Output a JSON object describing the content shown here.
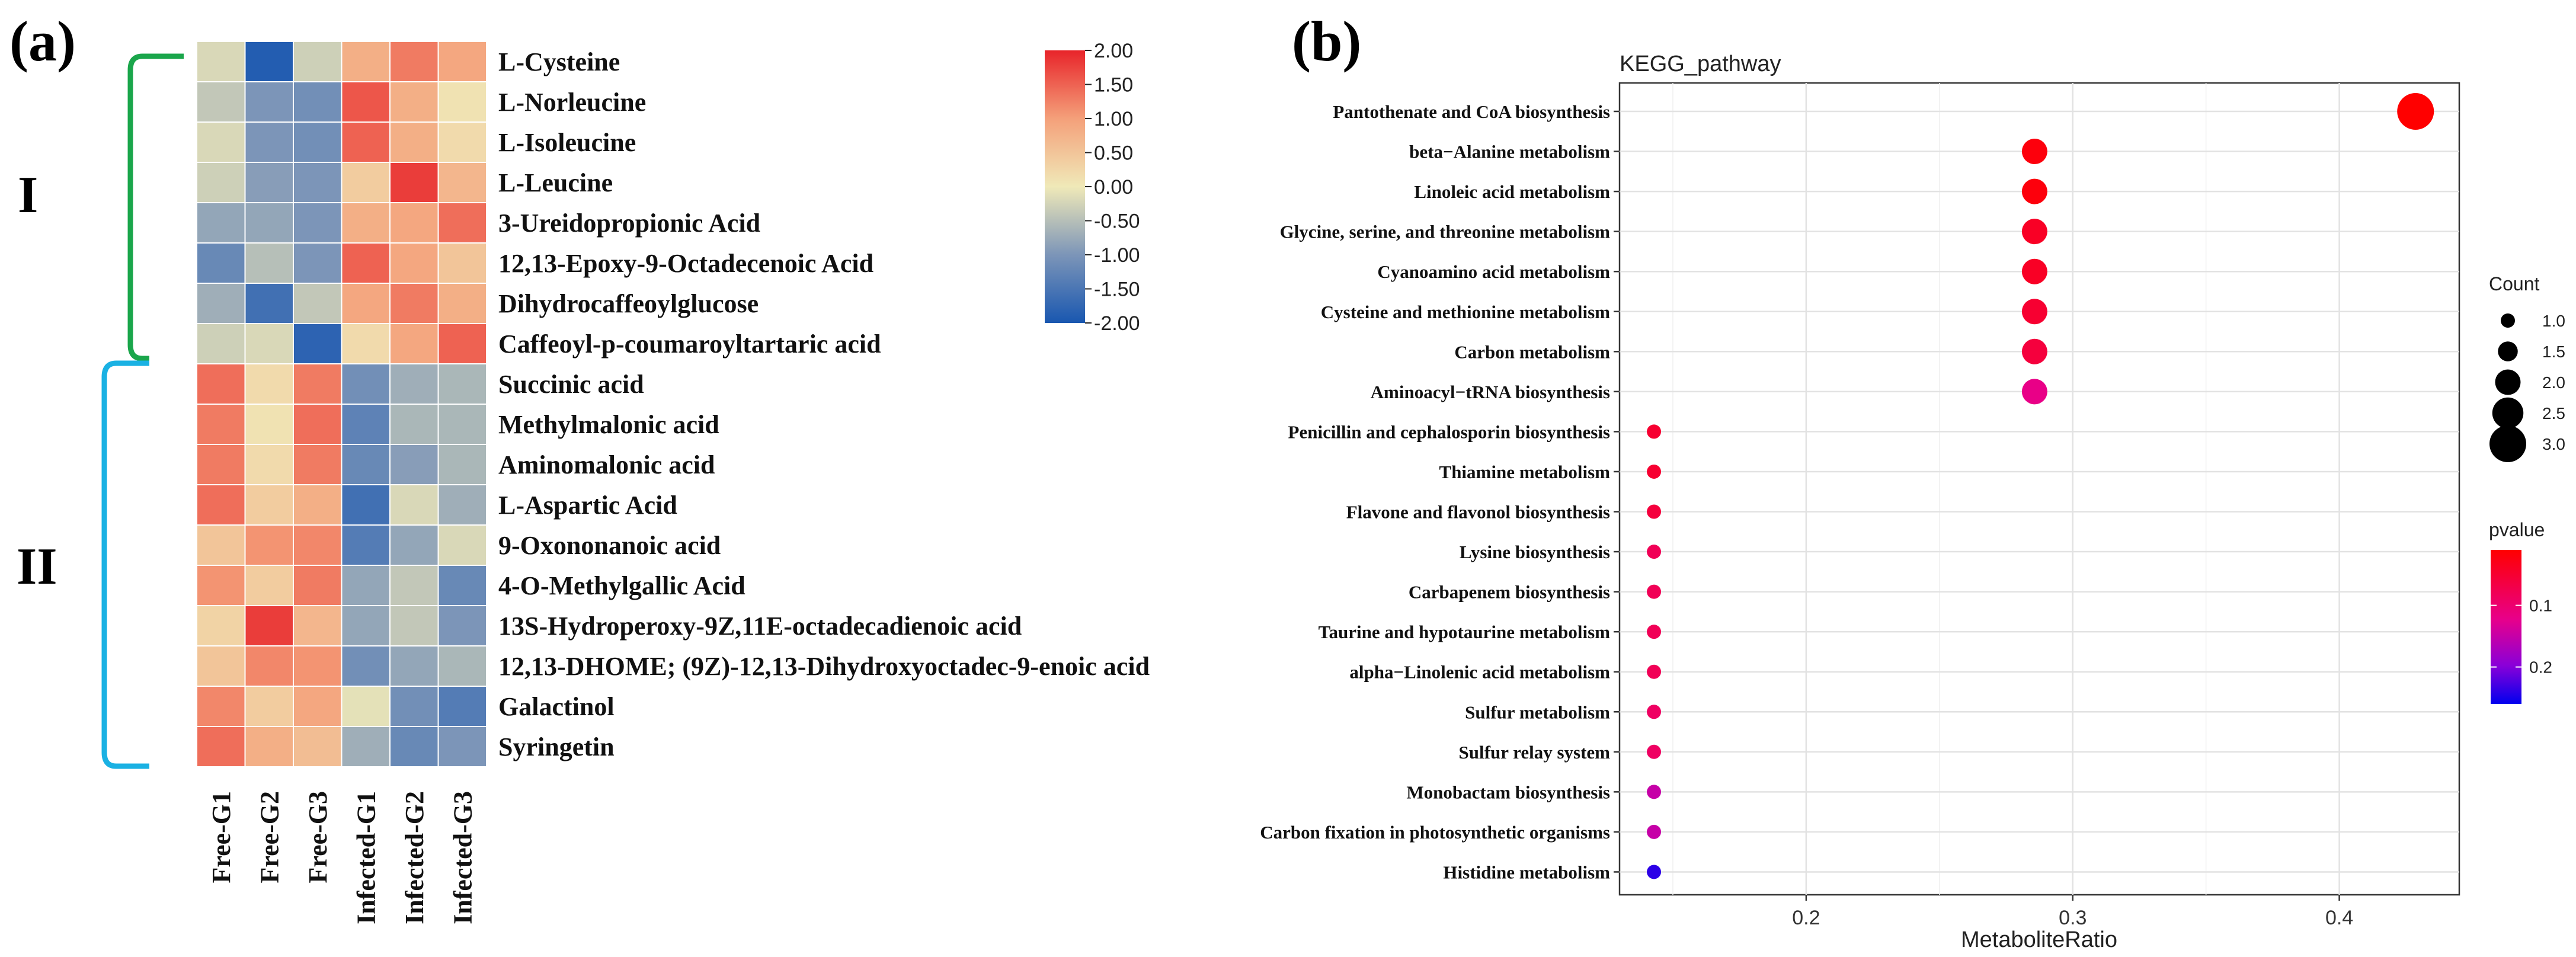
{
  "panel_a": {
    "panel_label": "(a)",
    "cluster_labels": [
      "I",
      "II"
    ],
    "colorbar": {
      "ticks": [
        "2.00",
        "1.50",
        "1.00",
        "0.50",
        "0.00",
        "-0.50",
        "-1.00",
        "-1.50",
        "-2.00"
      ]
    }
  },
  "panel_b": {
    "panel_label": "(b)",
    "title": "KEGG_pathway",
    "xlabel": "MetaboliteRatio",
    "xticks": [
      "0.2",
      "0.3",
      "0.4"
    ],
    "count_legend": {
      "title": "Count",
      "labels": [
        "1.0",
        "1.5",
        "2.0",
        "2.5",
        "3.0"
      ]
    },
    "pvalue_legend": {
      "title": "pvalue",
      "labels": [
        "0.1",
        "0.2"
      ]
    }
  },
  "colors": {
    "heat_low": "#1957b0",
    "heat_mid": "#f0e9b8",
    "heat_high": "#e8242a",
    "cluster_I": "#1aa64b",
    "cluster_II": "#1ab1e3",
    "p_low": "#ff0000",
    "p_mid": "#e8008a",
    "p_high": "#0000ee"
  },
  "chart_data": [
    {
      "type": "heatmap",
      "columns": [
        "Free-G1",
        "Free-G2",
        "Free-G3",
        "Infected-G1",
        "Infected-G2",
        "Infected-G3"
      ],
      "rows": [
        "L-Cysteine",
        "L-Norleucine",
        "L-Isoleucine",
        "L-Leucine",
        "3-Ureidopropionic Acid",
        "12,13-Epoxy-9-Octadecenoic Acid",
        "Dihydrocaffeoylglucose",
        "Caffeoyl-p-coumaroyltartaric acid",
        "Succinic acid",
        "Methylmalonic acid",
        "Aminomalonic acid",
        "L-Aspartic Acid",
        "9-Oxononanoic acid",
        "4-O-Methylgallic Acid",
        "13S-Hydroperoxy-9Z,11E-octadecadienoic acid",
        "12,13-DHOME; (9Z)-12,13-Dihydroxyoctadec-9-enoic acid",
        "Galactinol",
        "Syringetin"
      ],
      "clusters": [
        {
          "label": "I",
          "rows": [
            0,
            7
          ]
        },
        {
          "label": "II",
          "rows": [
            8,
            17
          ]
        }
      ],
      "values": [
        [
          -0.2,
          -1.9,
          -0.3,
          0.8,
          1.3,
          0.9
        ],
        [
          -0.4,
          -1.0,
          -1.1,
          1.6,
          0.8,
          0.1
        ],
        [
          -0.2,
          -1.0,
          -1.1,
          1.5,
          0.8,
          0.2
        ],
        [
          -0.3,
          -0.9,
          -1.0,
          0.4,
          1.8,
          0.7
        ],
        [
          -0.8,
          -0.8,
          -1.0,
          0.8,
          0.9,
          1.4
        ],
        [
          -1.2,
          -0.5,
          -1.0,
          1.5,
          0.9,
          0.5
        ],
        [
          -0.7,
          -1.6,
          -0.4,
          0.9,
          1.3,
          0.8
        ],
        [
          -0.3,
          -0.2,
          -1.8,
          0.2,
          0.9,
          1.5
        ],
        [
          1.4,
          0.2,
          1.3,
          -1.1,
          -0.7,
          -0.6
        ],
        [
          1.3,
          0.1,
          1.4,
          -1.3,
          -0.6,
          -0.6
        ],
        [
          1.3,
          0.2,
          1.3,
          -1.2,
          -0.9,
          -0.6
        ],
        [
          1.4,
          0.4,
          0.8,
          -1.6,
          -0.2,
          -0.7
        ],
        [
          0.5,
          1.1,
          1.2,
          -1.4,
          -0.8,
          -0.2
        ],
        [
          1.1,
          0.4,
          1.3,
          -0.8,
          -0.4,
          -1.2
        ],
        [
          0.3,
          1.8,
          0.7,
          -0.8,
          -0.4,
          -1.0
        ],
        [
          0.5,
          1.2,
          1.1,
          -1.1,
          -0.8,
          -0.6
        ],
        [
          1.2,
          0.4,
          0.9,
          -0.1,
          -1.1,
          -1.4
        ],
        [
          1.4,
          0.8,
          0.6,
          -0.7,
          -1.2,
          -1.0
        ]
      ],
      "color_range": [
        -2.0,
        2.0
      ]
    },
    {
      "type": "scatter",
      "title": "KEGG_pathway",
      "xlabel": "MetaboliteRatio",
      "xlim": [
        0.13,
        0.445
      ],
      "pathways": [
        "Pantothenate and CoA biosynthesis",
        "beta−Alanine metabolism",
        "Linoleic acid metabolism",
        "Glycine, serine, and threonine metabolism",
        "Cyanoamino acid metabolism",
        "Cysteine and methionine metabolism",
        "Carbon metabolism",
        "Aminoacyl−tRNA biosynthesis",
        "Penicillin and cephalosporin biosynthesis",
        "Thiamine metabolism",
        "Flavone and flavonol biosynthesis",
        "Lysine biosynthesis",
        "Carbapenem biosynthesis",
        "Taurine and hypotaurine metabolism",
        "alpha−Linolenic acid metabolism",
        "Sulfur metabolism",
        "Sulfur relay system",
        "Monobactam biosynthesis",
        "Carbon fixation in photosynthetic organisms",
        "Histidine metabolism"
      ],
      "metabolite_ratio": [
        0.4286,
        0.2857,
        0.2857,
        0.2857,
        0.2857,
        0.2857,
        0.2857,
        0.2857,
        0.1429,
        0.1429,
        0.1429,
        0.1429,
        0.1429,
        0.1429,
        0.1429,
        0.1429,
        0.1429,
        0.1429,
        0.1429,
        0.1429
      ],
      "count": [
        3,
        2,
        2,
        2,
        2,
        2,
        2,
        2,
        1,
        1,
        1,
        1,
        1,
        1,
        1,
        1,
        1,
        1,
        1,
        1
      ],
      "pvalue": [
        0.01,
        0.02,
        0.02,
        0.04,
        0.04,
        0.05,
        0.06,
        0.12,
        0.05,
        0.05,
        0.06,
        0.08,
        0.08,
        0.08,
        0.08,
        0.09,
        0.09,
        0.15,
        0.15,
        0.24
      ],
      "count_range": [
        1.0,
        3.0
      ],
      "pvalue_range": [
        0.01,
        0.26
      ]
    }
  ]
}
